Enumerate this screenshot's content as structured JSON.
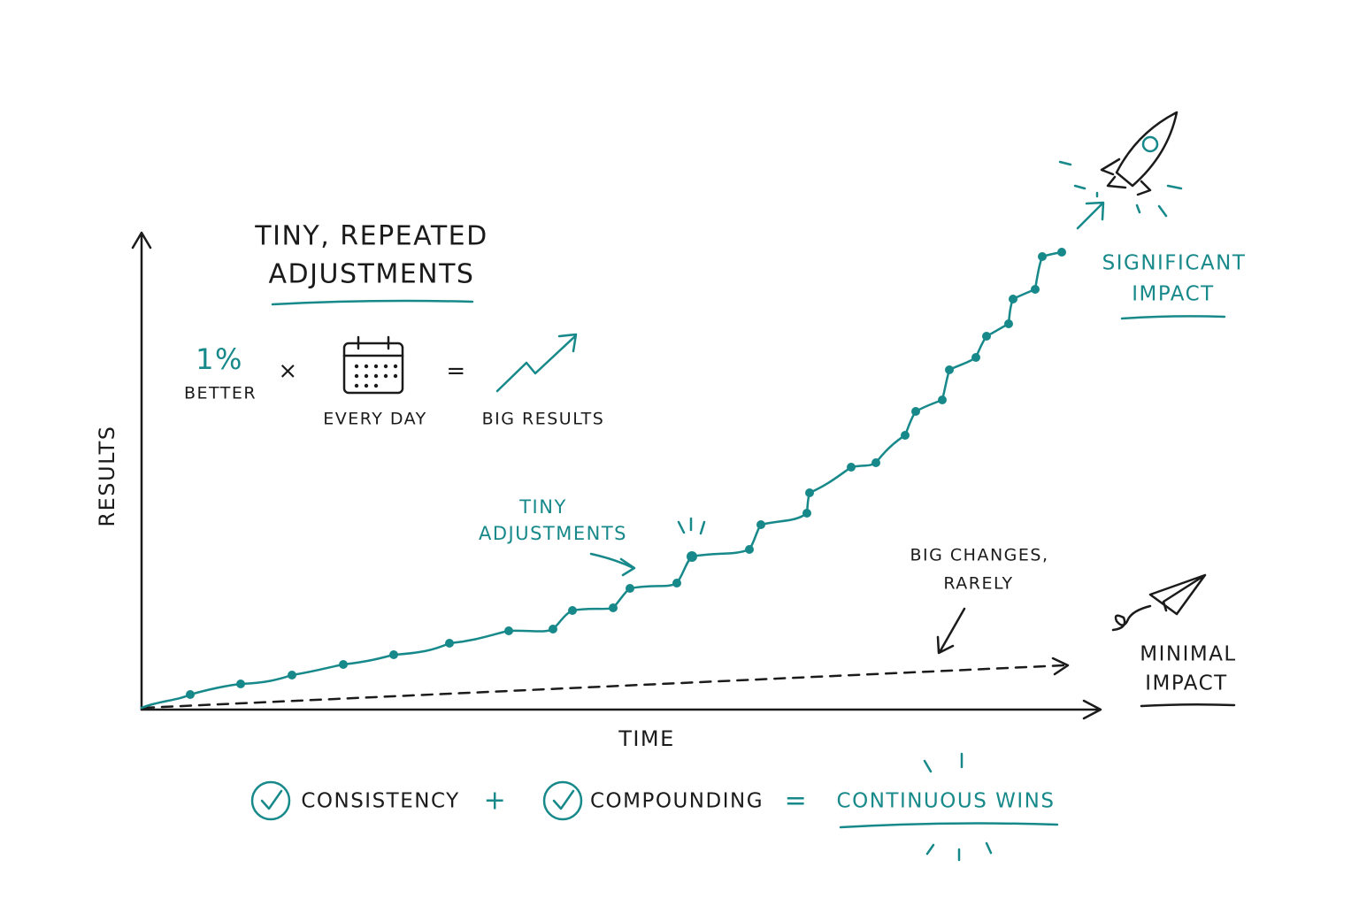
{
  "header": {
    "title": [
      "TINY, REPEATED",
      "ADJUSTMENTS"
    ]
  },
  "formula": {
    "percent": "1%",
    "better": "BETTER",
    "times": "×",
    "every_day": "EVERY DAY",
    "equals": "=",
    "big_results": "BIG RESULTS"
  },
  "axes": {
    "y_label": "RESULTS",
    "x_label": "TIME"
  },
  "annotations": {
    "tiny_adjustments": [
      "TINY",
      "ADJUSTMENTS"
    ],
    "big_changes": [
      "BIG CHANGES,",
      "RARELY"
    ],
    "significant_impact": [
      "SIGNIFICANT",
      "IMPACT"
    ],
    "minimal_impact": [
      "MINIMAL",
      "IMPACT"
    ]
  },
  "footer": {
    "consistency": "CONSISTENCY",
    "plus": "+",
    "compounding": "COMPOUNDING",
    "equals": "=",
    "result": "CONTINUOUS WINS"
  }
}
